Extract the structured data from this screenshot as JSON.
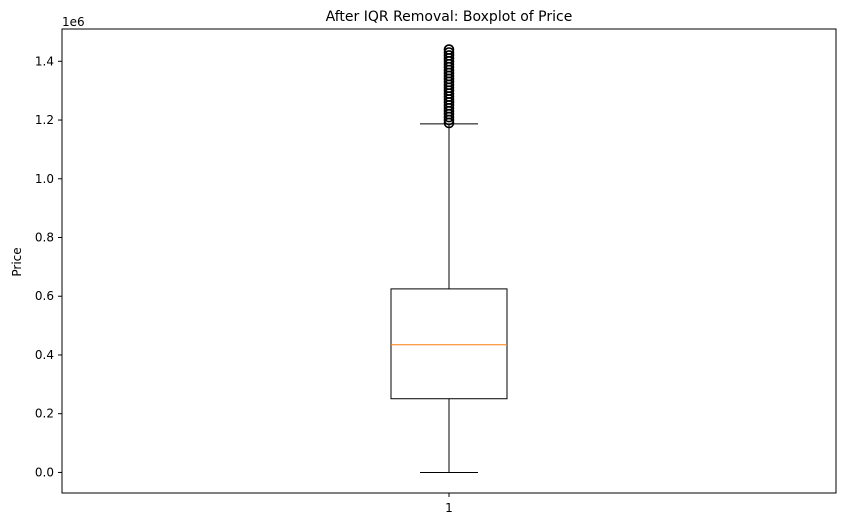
{
  "chart_data": {
    "type": "boxplot",
    "title": "After IQR Removal: Boxplot of Price",
    "xlabel": "",
    "ylabel": "Price",
    "y_offset_label": "1e6",
    "ylim": [
      -70000,
      1510000
    ],
    "yticks": [
      0.0,
      200000,
      400000,
      600000,
      800000,
      1000000,
      1200000,
      1400000
    ],
    "ytick_labels": [
      "0.0",
      "0.2",
      "0.4",
      "0.6",
      "0.8",
      "1.0",
      "1.2",
      "1.4"
    ],
    "categories": [
      "1"
    ],
    "boxes": [
      {
        "category": "1",
        "whisker_low": 0,
        "q1": 251000,
        "median": 435000,
        "q3": 625000,
        "whisker_high": 1187000,
        "outliers": [
          1190000,
          1200000,
          1210000,
          1220000,
          1230000,
          1240000,
          1250000,
          1260000,
          1270000,
          1280000,
          1290000,
          1300000,
          1310000,
          1320000,
          1330000,
          1340000,
          1350000,
          1360000,
          1370000,
          1380000,
          1390000,
          1400000,
          1410000,
          1420000,
          1430000,
          1440000
        ]
      }
    ],
    "grid": false,
    "colors": {
      "box": "#000000",
      "median": "#ff7f0e",
      "outlier": "#000000"
    }
  }
}
